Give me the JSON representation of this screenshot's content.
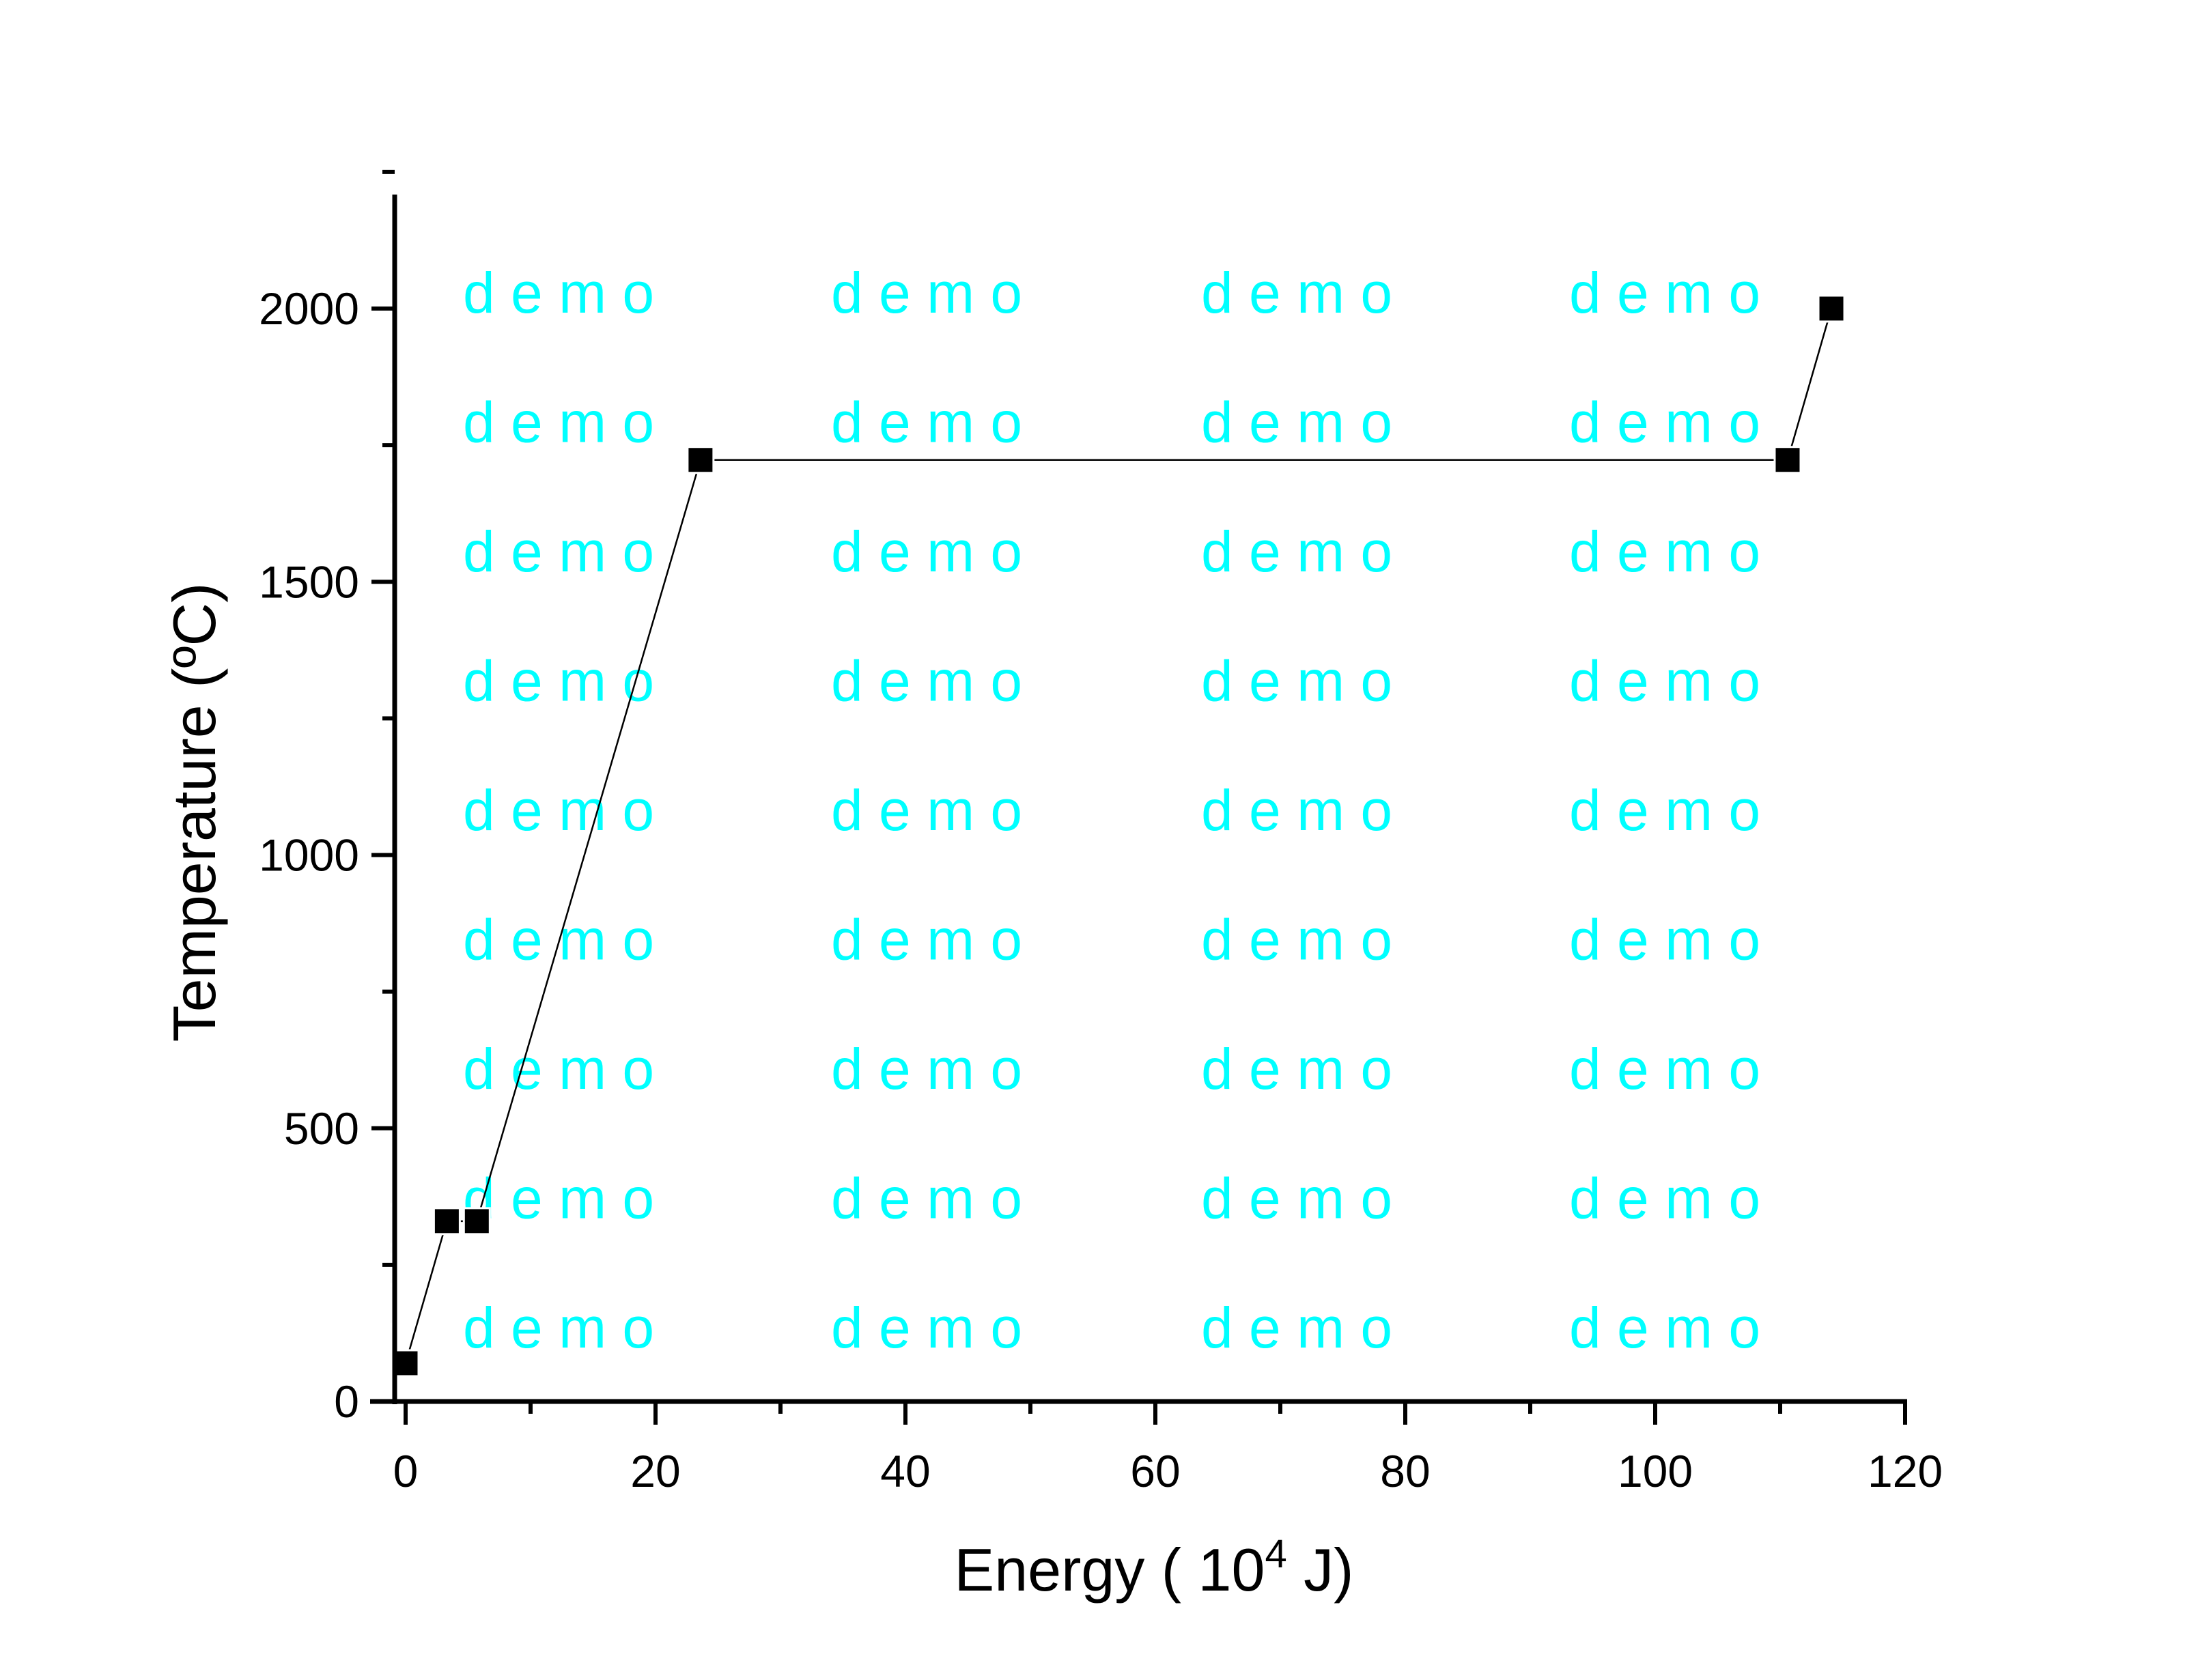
{
  "chart_data": {
    "type": "line",
    "title": "",
    "xlabel": "Energy ( 10",
    "xlabel_superscript": "4",
    "xlabel_suffix": " J)",
    "ylabel": "Temperature (ºC)",
    "xlim": [
      0,
      120
    ],
    "ylim": [
      0,
      2200
    ],
    "xticks": [
      0,
      20,
      40,
      60,
      80,
      100,
      120
    ],
    "yticks": [
      0,
      500,
      1000,
      1500,
      2000
    ],
    "grid": false,
    "series": [
      {
        "name": "Temperature",
        "marker": "square",
        "color": "#000000",
        "x": [
          0,
          3.3,
          5.7,
          23.6,
          110.6,
          114.1
        ],
        "y": [
          70,
          330,
          330,
          1723,
          1723,
          2000
        ]
      }
    ],
    "watermark": {
      "text": "d e m o",
      "color": "#00ffff"
    }
  }
}
